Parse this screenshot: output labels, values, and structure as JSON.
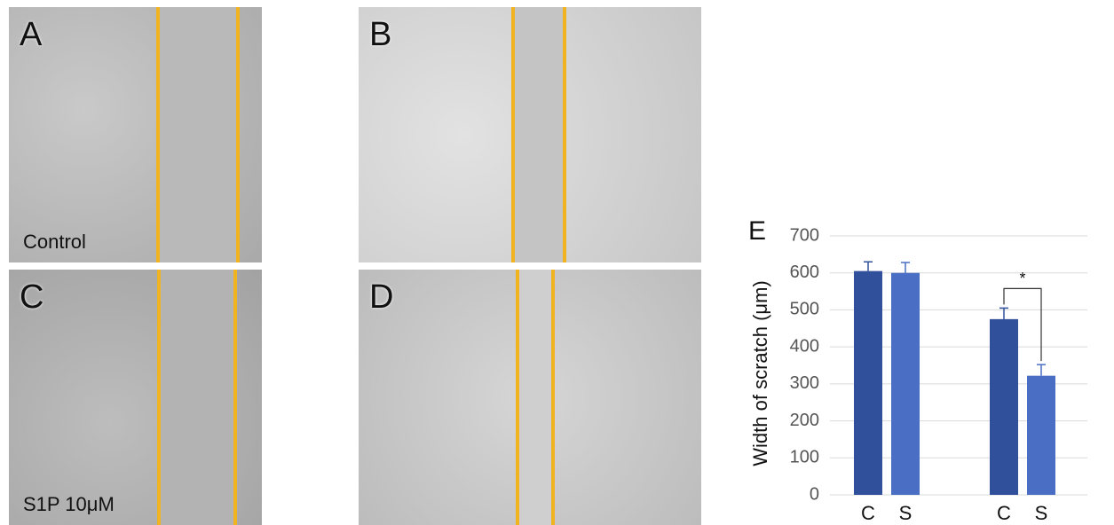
{
  "panels": [
    {
      "label": "A",
      "caption": "Control"
    },
    {
      "label": "B"
    },
    {
      "label": "C",
      "caption": "S1P 10μM"
    },
    {
      "label": "D"
    }
  ],
  "chart_data": {
    "type": "bar",
    "panel_label": "E",
    "y_label": "Width of scratch (μm)",
    "categories": [
      "C",
      "S",
      "C",
      "S"
    ],
    "values": [
      605,
      600,
      475,
      322
    ],
    "errors": [
      25,
      28,
      30,
      30
    ],
    "colors": [
      "#30509c",
      "#4a6ec4",
      "#30509c",
      "#4a6ec4"
    ],
    "ylim": [
      0,
      700
    ],
    "yticks": [
      0,
      100,
      200,
      300,
      400,
      500,
      600,
      700
    ],
    "grid": true,
    "annotation": "*"
  }
}
